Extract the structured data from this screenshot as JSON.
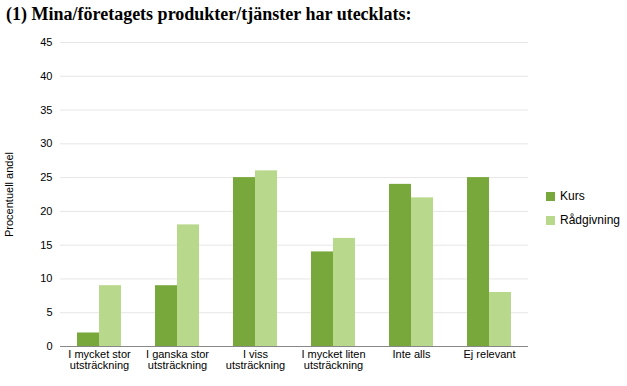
{
  "chart_data": {
    "type": "bar",
    "title": "(1) Mina/företagets produkter/tjänster har utecklats:",
    "y_label": "Procentuell andel",
    "categories": [
      "I mycket stor utsträckning",
      "I ganska stor utsträckning",
      "I viss utsträckning",
      "I mycket liten utsträckning",
      "Inte alls",
      "Ej relevant"
    ],
    "series": [
      {
        "name": "Kurs",
        "color": "#78a83b",
        "values": [
          2,
          9,
          25,
          14,
          24,
          25
        ]
      },
      {
        "name": "Rådgivning",
        "color": "#b8d88b",
        "values": [
          9,
          18,
          26,
          16,
          22,
          8
        ]
      }
    ],
    "ylim": [
      0,
      45
    ],
    "yticks": [
      0,
      5,
      10,
      15,
      20,
      25,
      30,
      35,
      40,
      45
    ],
    "grid": true,
    "legend": "right"
  }
}
